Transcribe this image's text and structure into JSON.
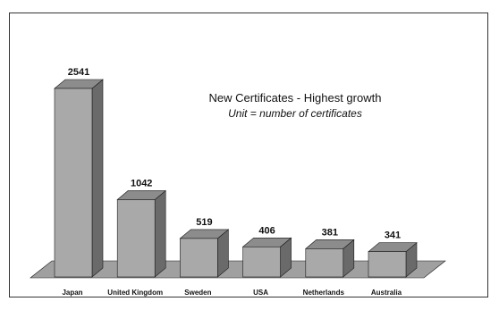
{
  "chart_data": {
    "type": "bar",
    "title": "New Certificates - Highest growth",
    "subtitle": "Unit = number of certificates",
    "categories": [
      "Japan",
      "United Kingdom",
      "Sweden",
      "USA",
      "Netherlands",
      "Australia"
    ],
    "values": [
      2541,
      1042,
      519,
      406,
      381,
      341
    ],
    "ylim": [
      0,
      2541
    ],
    "grid": false,
    "legend": "none",
    "three_d": true,
    "colors": {
      "bar_front": "#a9a9a9",
      "bar_side": "#6a6a6a",
      "bar_top": "#8c8c8c",
      "floor": "#a0a0a0",
      "edge": "#1a1a1a"
    }
  }
}
